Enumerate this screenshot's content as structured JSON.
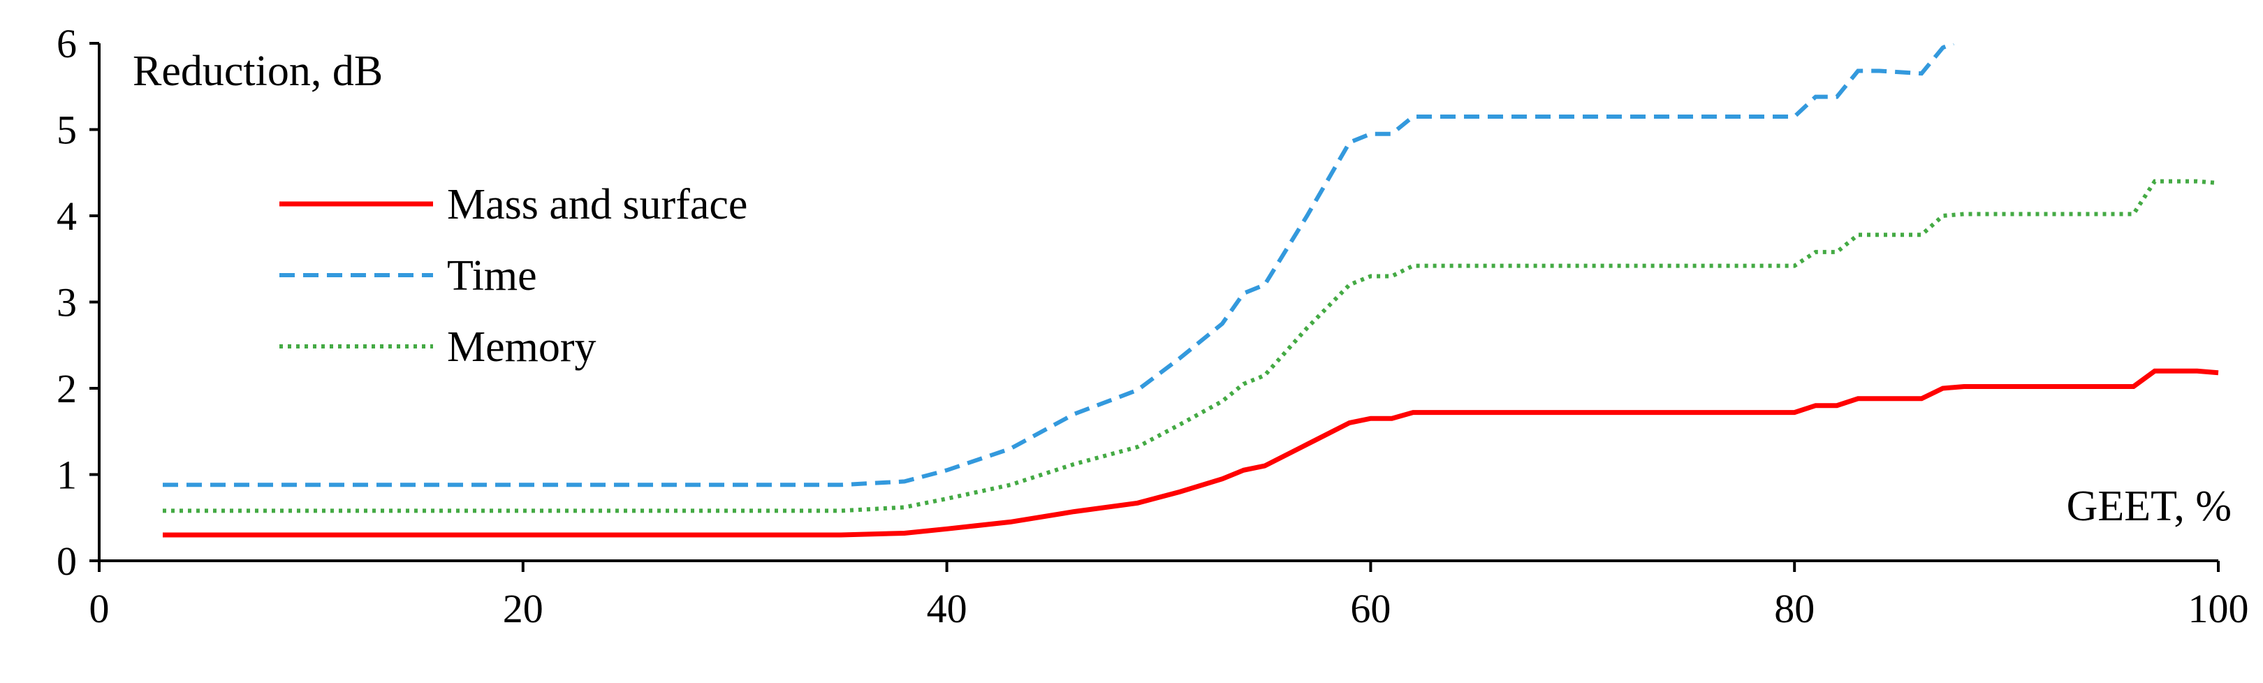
{
  "chart_data": {
    "type": "line",
    "ylabel": "Reduction, dB",
    "xlabel": "GEET, %",
    "xlim": [
      0,
      100
    ],
    "ylim": [
      0,
      6
    ],
    "x_ticks": [
      0,
      20,
      40,
      60,
      80,
      100
    ],
    "y_ticks": [
      0,
      1,
      2,
      3,
      4,
      5,
      6
    ],
    "grid": false,
    "legend_position": "upper-left",
    "series": [
      {
        "name": "Mass and surface",
        "color": "#ff0000",
        "line_style": "solid",
        "x": [
          3,
          10,
          20,
          30,
          35,
          38,
          40,
          43,
          46,
          49,
          51,
          53,
          54,
          55,
          57,
          59,
          60,
          61,
          62,
          70,
          80,
          81,
          82,
          83,
          84,
          86,
          87,
          88,
          90,
          96,
          97,
          99,
          100
        ],
        "y": [
          0.3,
          0.3,
          0.3,
          0.3,
          0.3,
          0.32,
          0.37,
          0.45,
          0.57,
          0.67,
          0.8,
          0.95,
          1.05,
          1.1,
          1.35,
          1.6,
          1.65,
          1.65,
          1.72,
          1.72,
          1.72,
          1.8,
          1.8,
          1.88,
          1.88,
          1.88,
          2.0,
          2.02,
          2.02,
          2.02,
          2.2,
          2.2,
          2.18
        ]
      },
      {
        "name": "Time",
        "color": "#3399dd",
        "line_style": "dashed",
        "x": [
          3,
          10,
          20,
          30,
          35,
          38,
          40,
          43,
          46,
          49,
          51,
          53,
          54,
          55,
          57,
          59,
          60,
          61,
          62,
          70,
          80,
          81,
          82,
          83,
          84,
          86,
          87,
          87.5
        ],
        "y": [
          0.88,
          0.88,
          0.88,
          0.88,
          0.88,
          0.92,
          1.05,
          1.3,
          1.7,
          1.98,
          2.35,
          2.75,
          3.1,
          3.2,
          4.0,
          4.85,
          4.95,
          4.95,
          5.15,
          5.15,
          5.15,
          5.38,
          5.38,
          5.68,
          5.68,
          5.65,
          5.95,
          6.0
        ]
      },
      {
        "name": "Memory",
        "color": "#44aa44",
        "line_style": "dotted",
        "x": [
          3,
          10,
          20,
          30,
          35,
          38,
          40,
          43,
          46,
          49,
          51,
          53,
          54,
          55,
          57,
          59,
          60,
          61,
          62,
          70,
          80,
          81,
          82,
          83,
          84,
          86,
          87,
          88,
          90,
          96,
          97,
          99,
          100
        ],
        "y": [
          0.58,
          0.58,
          0.58,
          0.58,
          0.58,
          0.62,
          0.72,
          0.88,
          1.12,
          1.32,
          1.58,
          1.85,
          2.05,
          2.15,
          2.7,
          3.2,
          3.3,
          3.3,
          3.42,
          3.42,
          3.42,
          3.58,
          3.58,
          3.78,
          3.78,
          3.78,
          4.0,
          4.02,
          4.02,
          4.02,
          4.4,
          4.4,
          4.38
        ]
      }
    ]
  }
}
